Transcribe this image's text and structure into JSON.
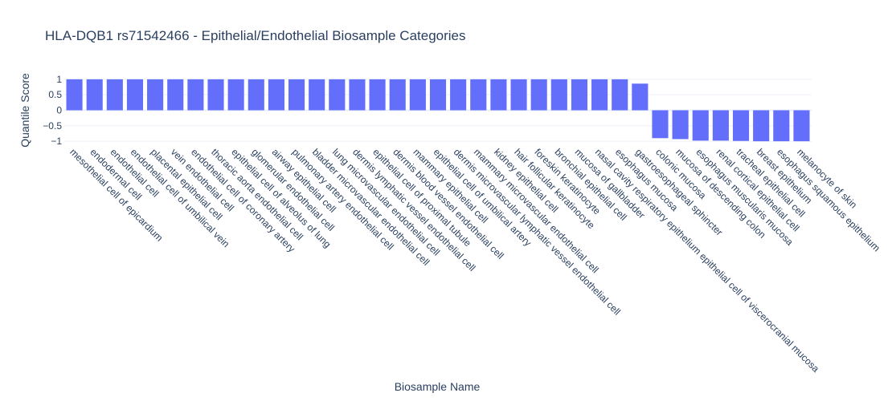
{
  "chart_data": {
    "type": "bar",
    "title": "HLA-DQB1 rs71542466 - Epithelial/Endothelial Biosample Categories",
    "xlabel": "Biosample Name",
    "ylabel": "Quantile Score",
    "ylim": [
      -1.1,
      1.1
    ],
    "yticks": [
      1,
      0.5,
      0,
      -0.5,
      -1
    ],
    "ytick_labels": [
      "1",
      "0.5",
      "0",
      "−0.5",
      "−1"
    ],
    "bar_color": "#636efa",
    "grid": true,
    "categories": [
      "mesothelial cell of epicardium",
      "endodermal cell",
      "endothelial cell",
      "endothelial cell of umbilical vein",
      "placental epithelial cell",
      "vein endothelial cell",
      "endothelial cell of coronary artery",
      "thoracic aorta endothelial cell",
      "epithelial cell of alveolus of lung",
      "glomerular endothelial cell",
      "airway epithelial cell",
      "pulmonary artery endothelial cell",
      "bladder microvascular endothelial cell",
      "lung microvascular endothelial cell",
      "dermis lymphatic vessel endothelial cell",
      "epithelial cell of proximal tubule",
      "dermis blood vessel endothelial cell",
      "mammary epithelial cell",
      "epithelial cell of umbilical artery",
      "dermis microvascular lymphatic vessel endothelial cell",
      "mammary microvascular endothelial cell",
      "kidney epithelial cell",
      "hair follicular keratinocyte",
      "foreskin keratinocyte",
      "bronchial epithelial cell",
      "mucosa of gallbladder",
      "nasal cavity respiratory epithelium epithelial cell of viscerocranial mucosa",
      "esophagus mucosa",
      "gastroesophageal sphincter",
      "colonic mucosa",
      "mucosa of descending colon",
      "esophagus muscularis mucosa",
      "renal cortical epithelial cell",
      "tracheal epithelial cell",
      "breast epithelium",
      "esophagus squamous epithelium",
      "melanocyte of skin"
    ],
    "values": [
      1,
      1,
      1,
      1,
      1,
      1,
      1,
      1,
      1,
      1,
      1,
      1,
      1,
      1,
      1,
      1,
      1,
      1,
      1,
      1,
      1,
      1,
      1,
      1,
      1,
      1,
      1,
      1,
      0.86,
      -0.9,
      -0.93,
      -0.98,
      -0.98,
      -0.99,
      -1,
      -1,
      -1
    ]
  }
}
